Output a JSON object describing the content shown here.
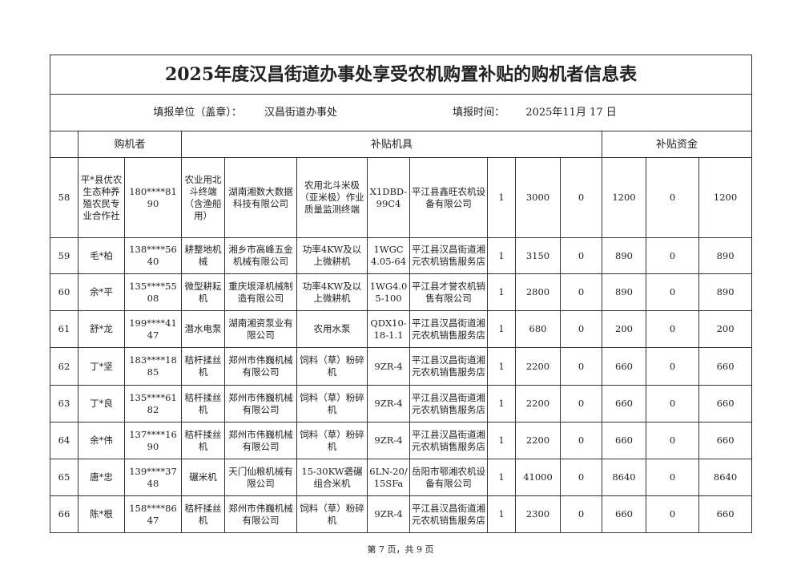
{
  "title": "2025年度汉昌街道办事处享受农机购置补贴的购机者信息表",
  "info": {
    "unit_label": "填报单位（盖章）：",
    "unit_value": "汉昌街道办事处",
    "date_label": "填报时间：",
    "date_value": "2025年11月 17 日"
  },
  "headers": {
    "buyer": "购机者",
    "machine": "补贴机具",
    "funds": "补贴资金"
  },
  "rows": [
    [
      "58",
      "平*县优农生态种养殖农民专业合作社",
      "180****8190",
      "农业用北斗终端（含渔船用）",
      "湖南湘数大数据科技有限公司",
      "农用北斗米极（亚米极）作业质量监测终端",
      "X1DBD-99C4",
      "平江县鑫旺农机设备有限公司",
      "1",
      "3000",
      "0",
      "1200",
      "0",
      "1200"
    ],
    [
      "59",
      "毛*柏",
      "138****5640",
      "耕整地机械",
      "湘乡市高峰五金机械有限公司",
      "功率4KW及以上微耕机",
      "1WGC4.05-64",
      "平江县汉昌街道湘元农机销售服务店",
      "1",
      "3150",
      "0",
      "890",
      "0",
      "890"
    ],
    [
      "60",
      "余*平",
      "135****5508",
      "微型耕耘机",
      "重庆垠泽机械制造有限公司",
      "功率4KW及以上微耕机",
      "1WG4.05-100",
      "平江县才誉农机销售有限公司",
      "1",
      "2800",
      "0",
      "890",
      "0",
      "890"
    ],
    [
      "61",
      "舒*龙",
      "199****4147",
      "潜水电泵",
      "湖南湘资泵业有限公司",
      "农用水泵",
      "QDX10-18-1.1",
      "平江县汉昌街道湘元农机销售服务店",
      "1",
      "680",
      "0",
      "200",
      "0",
      "200"
    ],
    [
      "62",
      "丁*坚",
      "183****1885",
      "秸杆揉丝机",
      "郑州市伟巍机械有限公司",
      "饲料（草）粉碎机",
      "9ZR-4",
      "平江县汉昌街道湘元农机销售服务店",
      "1",
      "2200",
      "0",
      "660",
      "0",
      "660"
    ],
    [
      "63",
      "丁*良",
      "135****6182",
      "秸杆揉丝机",
      "郑州市伟巍机械有限公司",
      "饲料（草）粉碎机",
      "9ZR-4",
      "平江县汉昌街道湘元农机销售服务店",
      "1",
      "2200",
      "0",
      "660",
      "0",
      "660"
    ],
    [
      "64",
      "余*伟",
      "137****1690",
      "秸杆揉丝机",
      "郑州市伟巍机械有限公司",
      "饲料（草）粉碎机",
      "9ZR-4",
      "平江县汉昌街道湘元农机销售服务店",
      "1",
      "2200",
      "0",
      "660",
      "0",
      "660"
    ],
    [
      "65",
      "唐*忠",
      "139****3748",
      "碾米机",
      "天门仙粮机械有限公司",
      "15-30KW砻碾组合米机",
      "6LN-20/15SFa",
      "岳阳市鄂湘农机设备有限公司",
      "1",
      "41000",
      "0",
      "8640",
      "0",
      "8640"
    ],
    [
      "66",
      "陈*根",
      "158****8647",
      "秸杆揉丝机",
      "郑州市伟巍机械有限公司",
      "饲料（草）粉碎机",
      "9ZR-4",
      "平江县汉昌街道湘元农机销售服务店",
      "1",
      "2300",
      "0",
      "660",
      "0",
      "660"
    ]
  ],
  "footer": "第 7 页，共 9 页"
}
